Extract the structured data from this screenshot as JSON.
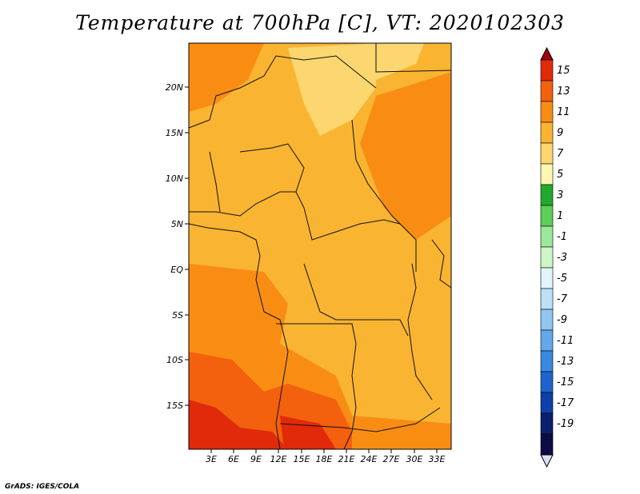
{
  "title": "Temperature at 700hPa [C], VT: 2020102303",
  "credit": "GrADS: IGES/COLA",
  "lat_labels": [
    "20N",
    "15N",
    "10N",
    "5N",
    "EQ",
    "5S",
    "10S",
    "15S"
  ],
  "lon_labels": [
    "3E",
    "6E",
    "9E",
    "12E",
    "15E",
    "18E",
    "21E",
    "24E",
    "27E",
    "30E",
    "33E"
  ],
  "colorbar": {
    "labels": [
      "15",
      "13",
      "11",
      "9",
      "7",
      "5",
      "3",
      "1",
      "-1",
      "-3",
      "-5",
      "-7",
      "-9",
      "-11",
      "-13",
      "-15",
      "-17",
      "-19"
    ],
    "colors": [
      "#a0000f",
      "#e02a0a",
      "#f3600e",
      "#f98d14",
      "#f9b432",
      "#fcd66e",
      "#fdf7b2",
      "#22a92c",
      "#5ccf56",
      "#9be89a",
      "#cdf5c6",
      "#e2f5fa",
      "#bce1f6",
      "#90c6f0",
      "#62a8ea",
      "#3a88e0",
      "#1c64cc",
      "#0d40a8",
      "#0a1f6e",
      "#0e0c44",
      "#dedef8"
    ]
  },
  "regions": {
    "dark_red": "#a0000f",
    "red": "#e02a0a",
    "red_orange": "#f3600e",
    "orange": "#f98d14",
    "light_orange": "#f9b432",
    "pale_yellow": "#fcd66e"
  }
}
